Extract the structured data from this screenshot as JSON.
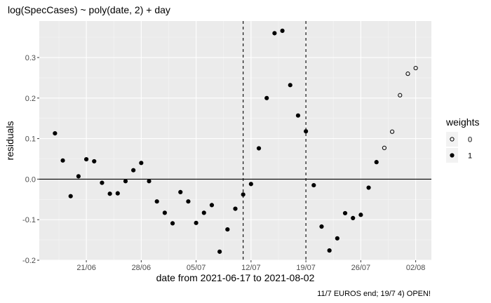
{
  "chart_data": {
    "type": "scatter",
    "title": "log(SpecCases) ~ poly(date, 2) + day",
    "xlabel": "date from 2021-06-17 to 2021-08-02",
    "ylabel": "residuals",
    "caption": "11/7 EUROS end; 19/7 4) OPEN!",
    "x_type": "date",
    "xlim": [
      "2021-06-15",
      "2021-08-04"
    ],
    "ylim": [
      -0.2,
      0.39
    ],
    "x_ticks": [
      {
        "date": "2021-06-21",
        "label": "21/06"
      },
      {
        "date": "2021-06-28",
        "label": "28/06"
      },
      {
        "date": "2021-07-05",
        "label": "05/07"
      },
      {
        "date": "2021-07-12",
        "label": "12/07"
      },
      {
        "date": "2021-07-19",
        "label": "19/07"
      },
      {
        "date": "2021-07-26",
        "label": "26/07"
      },
      {
        "date": "2021-08-02",
        "label": "02/08"
      }
    ],
    "y_ticks": [
      -0.2,
      -0.1,
      0.0,
      0.1,
      0.2,
      0.3
    ],
    "y_tick_labels": [
      "-0.2",
      "-0.1",
      "0.0",
      "0.1",
      "0.2",
      "0.3"
    ],
    "hline": 0,
    "vlines": [
      "2021-07-11",
      "2021-07-19"
    ],
    "grid": true,
    "legend": {
      "title": "weights",
      "position": "right",
      "entries": [
        "0",
        "1"
      ]
    },
    "series": [
      {
        "name": "1",
        "marker": "filled",
        "points": [
          {
            "x": "2021-06-17",
            "y": 0.113
          },
          {
            "x": "2021-06-18",
            "y": 0.046
          },
          {
            "x": "2021-06-19",
            "y": -0.042
          },
          {
            "x": "2021-06-20",
            "y": 0.007
          },
          {
            "x": "2021-06-21",
            "y": 0.049
          },
          {
            "x": "2021-06-22",
            "y": 0.044
          },
          {
            "x": "2021-06-23",
            "y": -0.009
          },
          {
            "x": "2021-06-24",
            "y": -0.036
          },
          {
            "x": "2021-06-25",
            "y": -0.035
          },
          {
            "x": "2021-06-26",
            "y": -0.005
          },
          {
            "x": "2021-06-27",
            "y": 0.022
          },
          {
            "x": "2021-06-28",
            "y": 0.04
          },
          {
            "x": "2021-06-29",
            "y": -0.005
          },
          {
            "x": "2021-06-30",
            "y": -0.055
          },
          {
            "x": "2021-07-01",
            "y": -0.083
          },
          {
            "x": "2021-07-02",
            "y": -0.109
          },
          {
            "x": "2021-07-03",
            "y": -0.032
          },
          {
            "x": "2021-07-04",
            "y": -0.055
          },
          {
            "x": "2021-07-05",
            "y": -0.108
          },
          {
            "x": "2021-07-06",
            "y": -0.083
          },
          {
            "x": "2021-07-07",
            "y": -0.064
          },
          {
            "x": "2021-07-08",
            "y": -0.179
          },
          {
            "x": "2021-07-09",
            "y": -0.124
          },
          {
            "x": "2021-07-10",
            "y": -0.073
          },
          {
            "x": "2021-07-11",
            "y": -0.038
          },
          {
            "x": "2021-07-12",
            "y": -0.012
          },
          {
            "x": "2021-07-13",
            "y": 0.076
          },
          {
            "x": "2021-07-14",
            "y": 0.2
          },
          {
            "x": "2021-07-15",
            "y": 0.36
          },
          {
            "x": "2021-07-16",
            "y": 0.366
          },
          {
            "x": "2021-07-17",
            "y": 0.232
          },
          {
            "x": "2021-07-18",
            "y": 0.157
          },
          {
            "x": "2021-07-19",
            "y": 0.118
          },
          {
            "x": "2021-07-20",
            "y": -0.015
          },
          {
            "x": "2021-07-21",
            "y": -0.117
          },
          {
            "x": "2021-07-22",
            "y": -0.176
          },
          {
            "x": "2021-07-23",
            "y": -0.146
          },
          {
            "x": "2021-07-24",
            "y": -0.084
          },
          {
            "x": "2021-07-25",
            "y": -0.096
          },
          {
            "x": "2021-07-26",
            "y": -0.088
          },
          {
            "x": "2021-07-27",
            "y": -0.021
          },
          {
            "x": "2021-07-28",
            "y": 0.042
          }
        ]
      },
      {
        "name": "0",
        "marker": "hollow",
        "points": [
          {
            "x": "2021-07-29",
            "y": 0.077
          },
          {
            "x": "2021-07-30",
            "y": 0.117
          },
          {
            "x": "2021-07-31",
            "y": 0.207
          },
          {
            "x": "2021-08-01",
            "y": 0.26
          },
          {
            "x": "2021-08-02",
            "y": 0.274
          }
        ]
      }
    ]
  }
}
